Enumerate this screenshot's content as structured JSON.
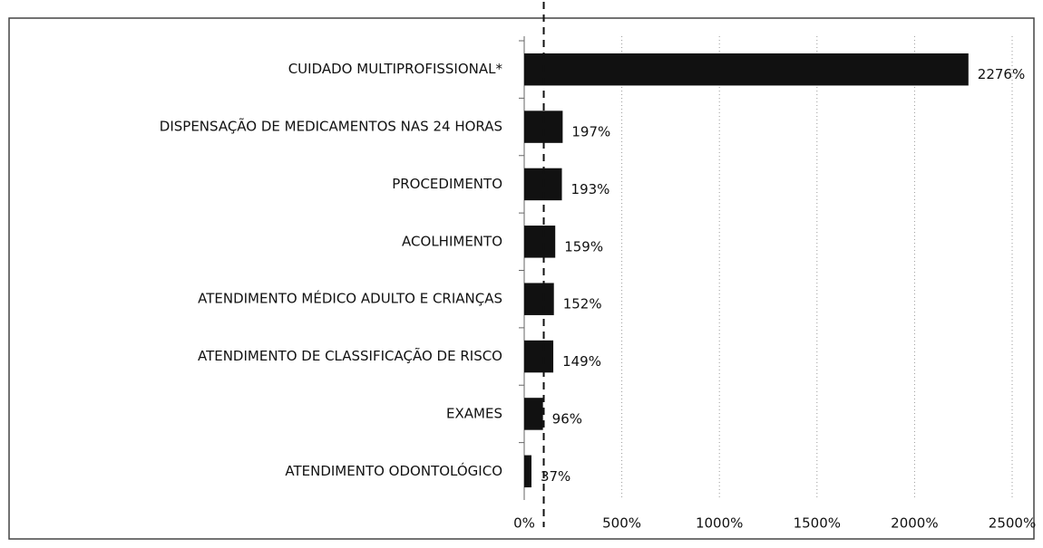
{
  "chart_data": {
    "type": "bar",
    "orientation": "horizontal",
    "categories": [
      "CUIDADO MULTIPROFISSIONAL*",
      "DISPENSAÇÃO DE MEDICAMENTOS  NAS 24 HORAS",
      "PROCEDIMENTO",
      "ACOLHIMENTO",
      "ATENDIMENTO  MÉDICO ADULTO E CRIANÇAS",
      "ATENDIMENTO  DE CLASSIFICAÇÃO DE RISCO",
      "EXAMES",
      "ATENDIMENTO  ODONTOLÓGICO"
    ],
    "values": [
      2276,
      197,
      193,
      159,
      152,
      149,
      96,
      37
    ],
    "value_labels": [
      "2276%",
      "197%",
      "193%",
      "159%",
      "152%",
      "149%",
      "96%",
      "37%"
    ],
    "color": "#111111",
    "xlim": [
      0,
      2500
    ],
    "xticks": [
      {
        "value": 0,
        "label": "0%"
      },
      {
        "value": 500,
        "label": "500%"
      },
      {
        "value": 1000,
        "label": "1000%"
      },
      {
        "value": 1500,
        "label": "1500%"
      },
      {
        "value": 2000,
        "label": "2000%"
      },
      {
        "value": 2500,
        "label": "2500%"
      }
    ],
    "grid": true,
    "reference_line": 100
  }
}
